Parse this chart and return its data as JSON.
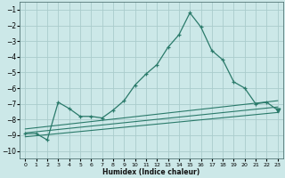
{
  "xlabel": "Humidex (Indice chaleur)",
  "bg_color": "#cce8e8",
  "grid_color": "#aacccc",
  "line_color": "#2a7a6a",
  "xlim": [
    -0.5,
    23.5
  ],
  "ylim": [
    -10.5,
    -0.5
  ],
  "yticks": [
    -1,
    -2,
    -3,
    -4,
    -5,
    -6,
    -7,
    -8,
    -9,
    -10
  ],
  "xticks": [
    0,
    1,
    2,
    3,
    4,
    5,
    6,
    7,
    8,
    9,
    10,
    11,
    12,
    13,
    14,
    15,
    16,
    17,
    18,
    19,
    20,
    21,
    22,
    23
  ],
  "main_x": [
    0,
    1,
    2,
    3,
    4,
    5,
    6,
    7,
    8,
    9,
    10,
    11,
    12,
    13,
    14,
    15,
    16,
    17,
    18,
    19,
    20,
    21,
    22,
    23
  ],
  "main_y": [
    -8.9,
    -8.9,
    -9.3,
    -6.9,
    -7.3,
    -7.8,
    -7.8,
    -7.9,
    -7.4,
    -6.8,
    -5.8,
    -5.1,
    -4.5,
    -3.4,
    -2.6,
    -1.2,
    -2.1,
    -3.6,
    -4.2,
    -5.6,
    -6.0,
    -7.0,
    -6.9,
    -7.4
  ],
  "line1_x": [
    0,
    23
  ],
  "line1_y": [
    -8.6,
    -6.8
  ],
  "line2_x": [
    0,
    23
  ],
  "line2_y": [
    -8.85,
    -7.2
  ],
  "line3_x": [
    0,
    23
  ],
  "line3_y": [
    -9.1,
    -7.55
  ],
  "last_marker_x": 23,
  "last_marker_y": -7.4
}
